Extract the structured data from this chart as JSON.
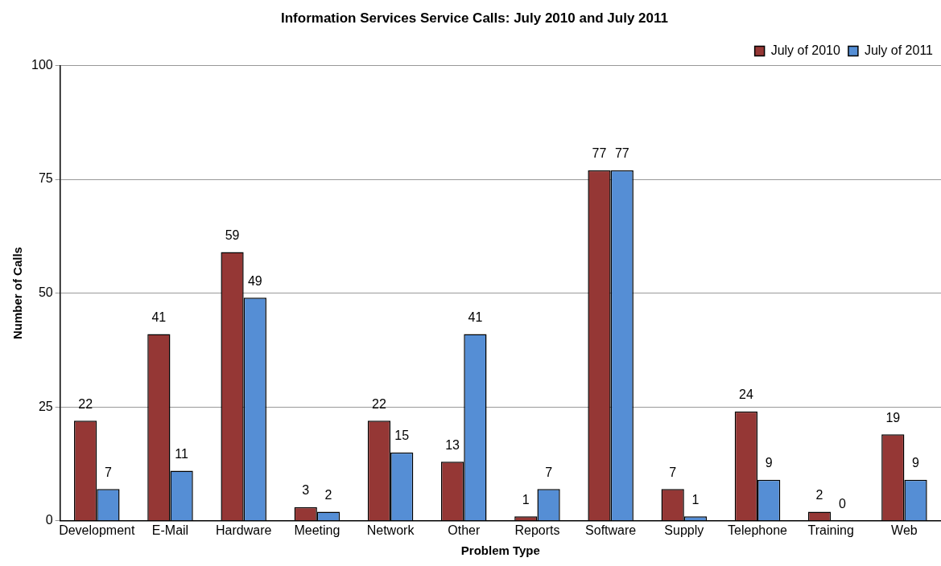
{
  "chart_data": {
    "type": "bar",
    "title": "Information Services Service Calls: July 2010 and July 2011",
    "xlabel": "Problem Type",
    "ylabel": "Number of Calls",
    "categories": [
      "Development",
      "E-Mail",
      "Hardware",
      "Meeting",
      "Network",
      "Other",
      "Reports",
      "Software",
      "Supply",
      "Telephone",
      "Training",
      "Web"
    ],
    "series": [
      {
        "name": "July of 2010",
        "color": "#953735",
        "values": [
          22,
          41,
          59,
          3,
          22,
          13,
          1,
          77,
          7,
          24,
          2,
          19
        ]
      },
      {
        "name": "July of 2011",
        "color": "#558ed5",
        "values": [
          7,
          11,
          49,
          2,
          15,
          41,
          7,
          77,
          1,
          9,
          0,
          9
        ]
      }
    ],
    "ylim": [
      0,
      100
    ],
    "yticks": [
      0,
      25,
      50,
      75,
      100
    ],
    "grid": "y",
    "legend": "top right",
    "data_labels": true
  }
}
